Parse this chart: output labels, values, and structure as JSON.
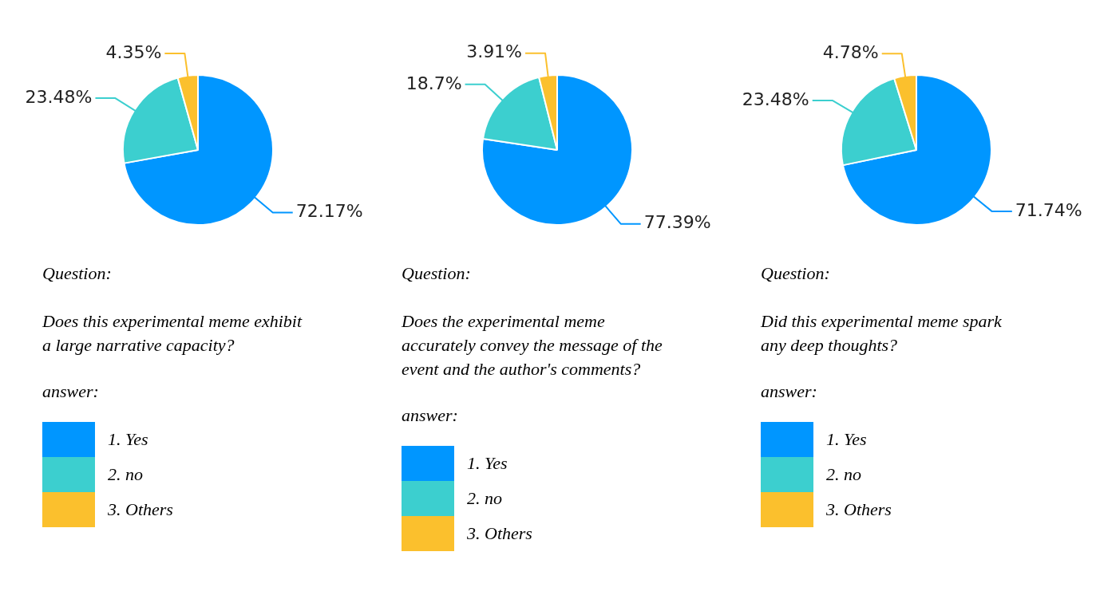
{
  "chart_data": [
    {
      "type": "pie",
      "categories": [
        "1. Yes",
        "2. no",
        "3. Others"
      ],
      "values": [
        72.17,
        23.48,
        4.35
      ],
      "value_labels": [
        "72.17%",
        "23.48%",
        "4.35%"
      ],
      "colors": [
        "#0096ff",
        "#3ccfcf",
        "#fbc02d"
      ],
      "legend": "bottom",
      "legend_title": "answer:",
      "annotations": [
        "Question:",
        "Does this experimental meme exhibit a large narrative capacity?"
      ]
    },
    {
      "type": "pie",
      "categories": [
        "1. Yes",
        "2. no",
        "3. Others"
      ],
      "values": [
        77.39,
        18.7,
        3.91
      ],
      "value_labels": [
        "77.39%",
        "18.7%",
        "3.91%"
      ],
      "colors": [
        "#0096ff",
        "#3ccfcf",
        "#fbc02d"
      ],
      "legend": "bottom",
      "legend_title": "answer:",
      "annotations": [
        "Question:",
        "Does the experimental meme accurately convey the message of the event and the author's comments?"
      ]
    },
    {
      "type": "pie",
      "categories": [
        "1. Yes",
        "2. no",
        "3. Others"
      ],
      "values": [
        71.74,
        23.48,
        4.78
      ],
      "value_labels": [
        "71.74%",
        "23.48%",
        "4.78%"
      ],
      "colors": [
        "#0096ff",
        "#3ccfcf",
        "#fbc02d"
      ],
      "legend": "bottom",
      "legend_title": "answer:",
      "annotations": [
        "Question:",
        "Did this experimental meme spark any deep thoughts?"
      ]
    }
  ]
}
